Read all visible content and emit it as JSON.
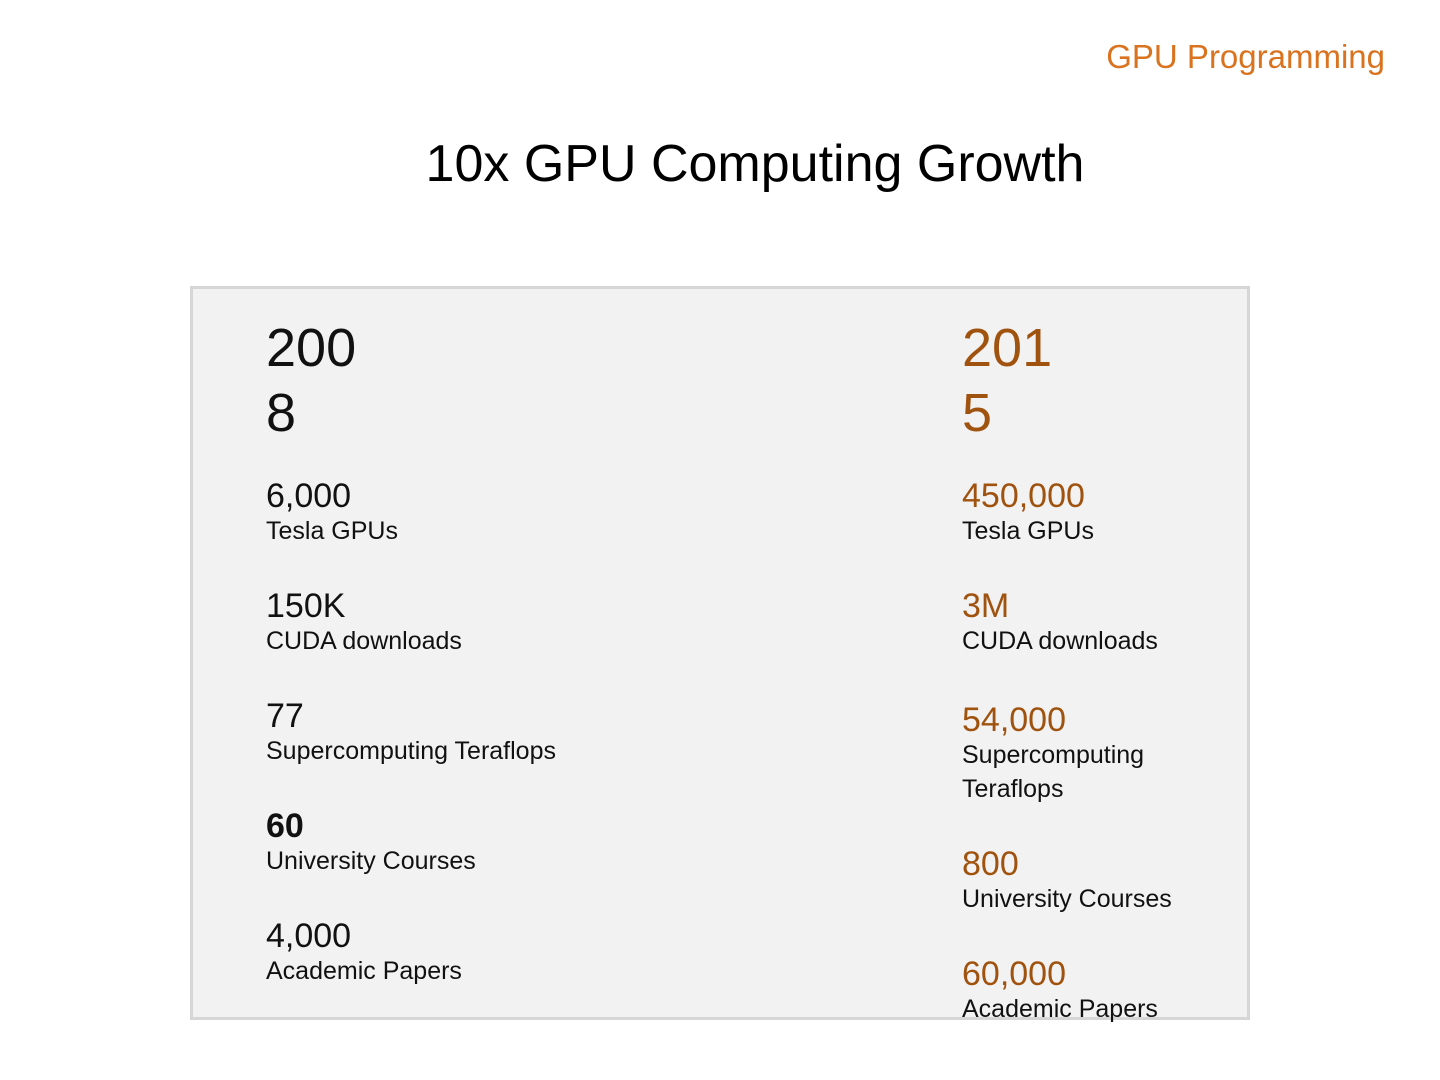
{
  "header": {
    "label": "GPU Programming"
  },
  "slide": {
    "title": "10x GPU Computing Growth"
  },
  "left": {
    "year_line1": "200",
    "year_line2": "8",
    "stats": [
      {
        "value": "6,000",
        "label": "Tesla GPUs"
      },
      {
        "value": "150K",
        "label": "CUDA downloads"
      },
      {
        "value": "77",
        "label": "Supercomputing Teraflops"
      },
      {
        "value": "60",
        "label": "University Courses"
      },
      {
        "value": "4,000",
        "label": "Academic Papers"
      }
    ]
  },
  "right": {
    "year_line1": "201",
    "year_line2": "5",
    "stats": [
      {
        "value": "450,000",
        "label": "Tesla GPUs"
      },
      {
        "value": "3M",
        "label": "CUDA downloads"
      },
      {
        "value": "54,000",
        "label_line1": "Supercomputing",
        "label_line2": "Teraflops"
      },
      {
        "value": "800",
        "label": "University Courses"
      },
      {
        "value": "60,000",
        "label": "Academic Papers"
      }
    ]
  },
  "colors": {
    "accent_header": "#d9731f",
    "accent_values": "#a0520f",
    "panel_bg": "#f2f2f2",
    "panel_border": "#d6d6d6"
  }
}
